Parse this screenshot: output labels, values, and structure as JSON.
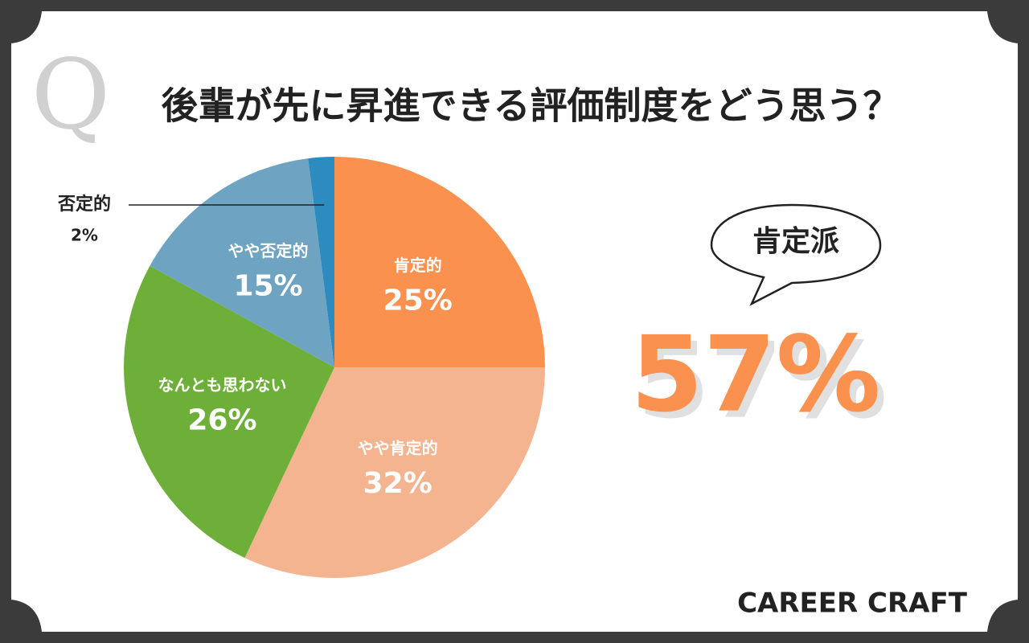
{
  "chart_data": {
    "type": "pie",
    "watermark": "Q",
    "title": "後輩が先に昇進できる評価制度をどう思う？",
    "categories": [
      "肯定的",
      "やや肯定的",
      "なんとも思わない",
      "やや否定的",
      "否定的"
    ],
    "values": [
      25,
      32,
      26,
      15,
      2
    ],
    "value_labels": [
      "25%",
      "32%",
      "26%",
      "15%",
      "2%"
    ],
    "colors": [
      "#fb914f",
      "#f4b48f",
      "#6eaf39",
      "#6ea3c2",
      "#2e8bbf"
    ],
    "annotation_label": "肯定派",
    "annotation_value": "57%",
    "brand": "CAREER CRAFT"
  }
}
